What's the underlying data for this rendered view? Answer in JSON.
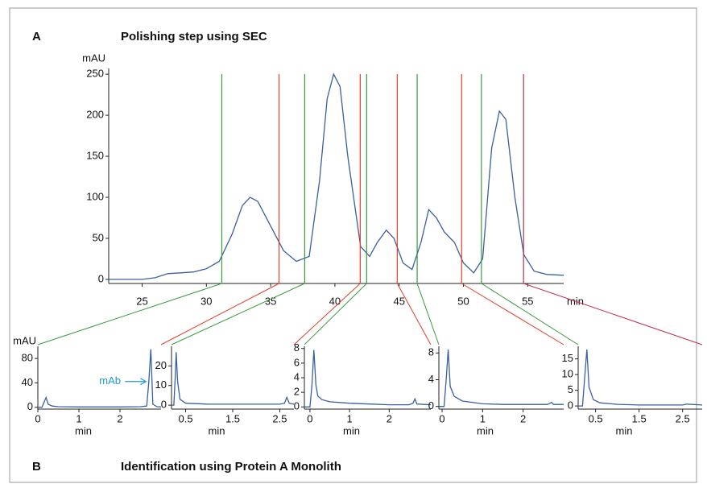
{
  "panel_b": {
    "label": "B",
    "title": "Identification using Protein A Monolith"
  },
  "chart_data": [
    {
      "type": "line",
      "panel_label": "A",
      "title": "Polishing step using SEC",
      "ylabel": "mAU",
      "xlabel": "min",
      "xlim": [
        22.4,
        57.8
      ],
      "ylim": [
        -5,
        257
      ],
      "xticks": [
        25,
        30,
        35,
        40,
        45,
        50,
        55
      ],
      "yticks": [
        0,
        50,
        100,
        150,
        200,
        250
      ],
      "color": "#3b5fa0",
      "x": [
        22.4,
        24,
        25,
        26,
        27,
        28,
        29,
        30,
        31,
        32,
        32.8,
        33.4,
        34,
        35,
        36,
        37,
        38,
        38.8,
        39.4,
        39.9,
        40.4,
        41,
        42,
        42.7,
        43.3,
        44,
        44.6,
        45.3,
        46,
        46.7,
        47.3,
        47.9,
        48.5,
        49.3,
        50,
        50.8,
        51.5,
        52.2,
        52.8,
        53.3,
        54,
        54.7,
        55.5,
        56.5,
        57.8
      ],
      "values": [
        0,
        0,
        0,
        2,
        7,
        8,
        9,
        13,
        22,
        55,
        90,
        100,
        95,
        65,
        35,
        22,
        28,
        120,
        220,
        250,
        235,
        150,
        40,
        28,
        45,
        60,
        50,
        20,
        12,
        45,
        85,
        75,
        58,
        45,
        20,
        8,
        25,
        160,
        205,
        195,
        100,
        30,
        10,
        6,
        5
      ],
      "fraction_cuts": [
        {
          "x": 31.2,
          "color": "#3a9a3a"
        },
        {
          "x": 35.65,
          "color": "#e0402a"
        },
        {
          "x": 37.65,
          "color": "#3a9a3a"
        },
        {
          "x": 41.97,
          "color": "#e0402a"
        },
        {
          "x": 42.47,
          "color": "#3a9a3a"
        },
        {
          "x": 44.85,
          "color": "#e0402a"
        },
        {
          "x": 46.4,
          "color": "#3a9a3a"
        },
        {
          "x": 49.86,
          "color": "#e0402a"
        },
        {
          "x": 51.4,
          "color": "#3a9a3a"
        },
        {
          "x": 54.68,
          "color": "#c0304a"
        }
      ]
    },
    {
      "type": "line",
      "ylabel": "mAU",
      "xlabel": "min",
      "xlim": [
        0,
        3.0
      ],
      "ylim": [
        -3,
        100
      ],
      "xticks": [
        0,
        1,
        2
      ],
      "yticks": [
        0,
        40,
        80
      ],
      "color": "#3b5fa0",
      "x": [
        0,
        0.1,
        0.15,
        0.2,
        0.25,
        0.35,
        0.5,
        1,
        1.5,
        2,
        2.5,
        2.65,
        2.7,
        2.75,
        2.8,
        2.9,
        3.0
      ],
      "values": [
        0,
        0,
        8,
        16,
        5,
        2,
        1,
        0.5,
        0.5,
        0.5,
        1,
        2,
        40,
        95,
        5,
        1,
        0.5
      ],
      "annotation": {
        "text": "mAb",
        "color": "#1e9ad6"
      }
    },
    {
      "type": "line",
      "xlabel": "min",
      "xlim": [
        0.2,
        2.8
      ],
      "ylim": [
        -2,
        30
      ],
      "xticks": [
        0.5,
        1.5,
        2.5
      ],
      "yticks": [
        0,
        10,
        20
      ],
      "color": "#3b5fa0",
      "x": [
        0.2,
        0.25,
        0.28,
        0.3,
        0.33,
        0.38,
        0.5,
        1,
        1.5,
        2,
        2.5,
        2.6,
        2.65,
        2.7,
        2.8
      ],
      "values": [
        0,
        0,
        15,
        27,
        12,
        3,
        1,
        0.5,
        0.5,
        0.5,
        0.5,
        1,
        4,
        1,
        0.5
      ]
    },
    {
      "type": "line",
      "xlabel": "min",
      "xlim": [
        -0.14,
        3.05
      ],
      "ylim": [
        -0.3,
        8.3
      ],
      "xticks": [
        0,
        1,
        2
      ],
      "yticks": [
        0,
        2,
        4,
        6,
        8
      ],
      "color": "#3b5fa0",
      "x": [
        -0.14,
        0,
        0.05,
        0.1,
        0.15,
        0.2,
        0.3,
        0.5,
        1,
        1.5,
        2,
        2.5,
        2.6,
        2.65,
        2.7,
        3.05
      ],
      "values": [
        0,
        0,
        3,
        7.8,
        3,
        1.5,
        1,
        0.7,
        0.5,
        0.4,
        0.3,
        0.3,
        0.5,
        1.1,
        0.4,
        0.3
      ]
    },
    {
      "type": "line",
      "xlabel": "min",
      "xlim": [
        -0.08,
        3.0
      ],
      "ylim": [
        -0.4,
        9
      ],
      "xticks": [
        0,
        1,
        2
      ],
      "yticks": [
        0,
        4,
        8
      ],
      "color": "#3b5fa0",
      "x": [
        -0.08,
        0.05,
        0.1,
        0.15,
        0.2,
        0.3,
        0.5,
        1,
        1.5,
        2,
        2.6,
        2.7,
        2.75,
        3.0
      ],
      "values": [
        0,
        0,
        4,
        8.5,
        3,
        1.5,
        0.8,
        0.4,
        0.3,
        0.3,
        0.3,
        0.6,
        0.3,
        0.3
      ]
    },
    {
      "type": "line",
      "xlabel": "min",
      "xlim": [
        0.1,
        2.95
      ],
      "ylim": [
        -1,
        19
      ],
      "xticks": [
        0.5,
        1.5,
        2.5
      ],
      "yticks": [
        0,
        5,
        10,
        15
      ],
      "color": "#3b5fa0",
      "x": [
        0.1,
        0.2,
        0.25,
        0.3,
        0.35,
        0.45,
        0.6,
        1,
        1.5,
        2,
        2.5,
        2.6,
        2.95
      ],
      "values": [
        0,
        0,
        9,
        18,
        6,
        2,
        1,
        0.5,
        0.3,
        0.3,
        0.3,
        0.6,
        0.3
      ]
    }
  ]
}
